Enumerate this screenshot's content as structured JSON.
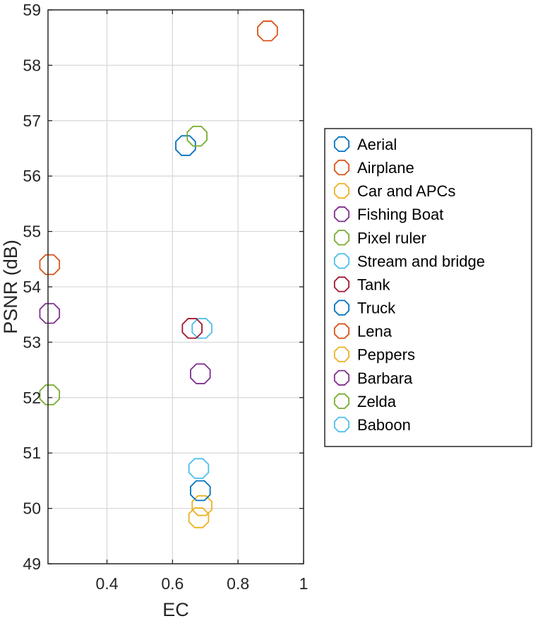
{
  "chart_data": {
    "type": "scatter",
    "title": "",
    "xlabel": "EC",
    "ylabel": "PSNR (dB)",
    "xlim": [
      0.22,
      1.0
    ],
    "ylim": [
      49,
      59
    ],
    "xticks": [
      "0.4",
      "0.6",
      "0.8",
      "1"
    ],
    "xtick_values": [
      0.4,
      0.6,
      0.8,
      1.0
    ],
    "yticks": [
      "49",
      "50",
      "51",
      "52",
      "53",
      "54",
      "55",
      "56",
      "57",
      "58",
      "59"
    ],
    "ytick_values": [
      49,
      50,
      51,
      52,
      53,
      54,
      55,
      56,
      57,
      58,
      59
    ],
    "grid": true,
    "legend_position": "right",
    "marker": "octagon-open",
    "series": [
      {
        "name": "Aerial",
        "color": "#0072BD",
        "x": [
          0.64
        ],
        "y": [
          56.55
        ]
      },
      {
        "name": "Airplane",
        "color": "#D95319",
        "x": [
          0.89
        ],
        "y": [
          58.62
        ]
      },
      {
        "name": "Car and APCs",
        "color": "#EDB120",
        "x": [
          0.69
        ],
        "y": [
          50.05
        ]
      },
      {
        "name": "Fishing Boat",
        "color": "#7E2F8E",
        "x": [
          0.685
        ],
        "y": [
          52.43
        ]
      },
      {
        "name": "Pixel ruler",
        "color": "#77AC30",
        "x": [
          0.675
        ],
        "y": [
          56.72
        ]
      },
      {
        "name": "Stream and bridge",
        "color": "#4DBEEE",
        "x": [
          0.69
        ],
        "y": [
          53.25
        ]
      },
      {
        "name": "Tank",
        "color": "#A2142F",
        "x": [
          0.66
        ],
        "y": [
          53.25
        ]
      },
      {
        "name": "Truck",
        "color": "#0072BD",
        "x": [
          0.685
        ],
        "y": [
          50.32
        ]
      },
      {
        "name": "Lena",
        "color": "#D95319",
        "x": [
          0.225
        ],
        "y": [
          54.4
        ]
      },
      {
        "name": "Peppers",
        "color": "#EDB120",
        "x": [
          0.68
        ],
        "y": [
          49.83
        ]
      },
      {
        "name": "Barbara",
        "color": "#7E2F8E",
        "x": [
          0.225
        ],
        "y": [
          53.52
        ]
      },
      {
        "name": "Zelda",
        "color": "#77AC30",
        "x": [
          0.225
        ],
        "y": [
          52.05
        ]
      },
      {
        "name": "Baboon",
        "color": "#4DBEEE",
        "x": [
          0.68
        ],
        "y": [
          50.72
        ]
      }
    ]
  }
}
